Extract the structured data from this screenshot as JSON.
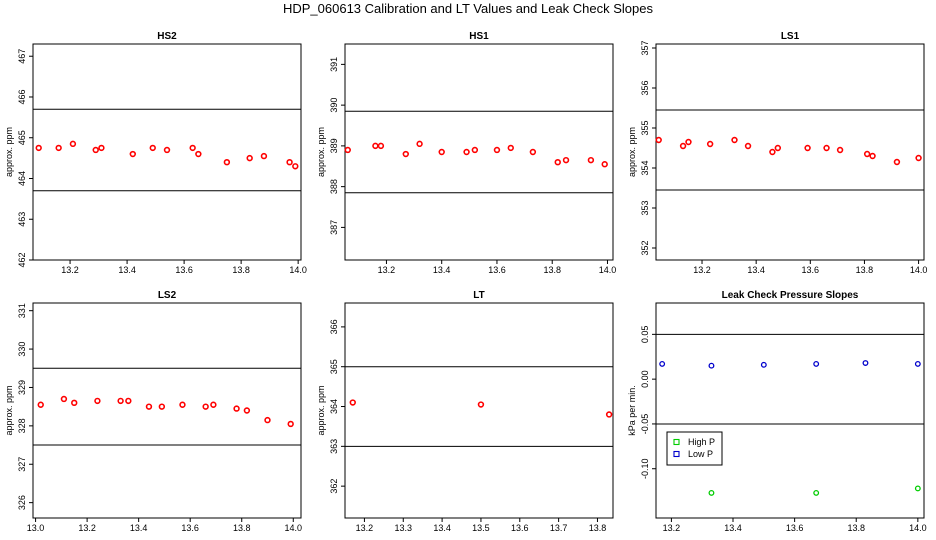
{
  "title": "HDP_060613  Calibration and LT Values and Leak Check Slopes",
  "colors": {
    "points": "#ff0000",
    "point_edge": "#cc0000",
    "high_p": "#00cc00",
    "low_p": "#0000cc",
    "line": "#000000"
  },
  "chart_data": [
    {
      "id": "hs2",
      "type": "scatter",
      "title": "HS2",
      "ylabel": "approx. ppm",
      "xlim": [
        13.07,
        14.01
      ],
      "ylim": [
        462,
        467.3
      ],
      "xticks": [
        13.2,
        13.4,
        13.6,
        13.8,
        14.0
      ],
      "xtick_labels": [
        "13.2",
        "13.4",
        "13.6",
        "13.8",
        "14.0"
      ],
      "yticks": [
        462,
        463,
        464,
        465,
        466,
        467
      ],
      "ytick_labels": [
        "462",
        "463",
        "464",
        "465",
        "466",
        "467"
      ],
      "hlines": [
        465.7,
        463.7
      ],
      "x": [
        13.09,
        13.16,
        13.21,
        13.29,
        13.31,
        13.42,
        13.49,
        13.54,
        13.63,
        13.65,
        13.75,
        13.83,
        13.88,
        13.97,
        13.99
      ],
      "y": [
        464.75,
        464.75,
        464.85,
        464.7,
        464.75,
        464.6,
        464.75,
        464.7,
        464.75,
        464.6,
        464.4,
        464.5,
        464.55,
        464.4,
        464.3
      ]
    },
    {
      "id": "hs1",
      "type": "scatter",
      "title": "HS1",
      "ylabel": "approx. ppm",
      "xlim": [
        13.05,
        14.02
      ],
      "ylim": [
        386.2,
        391.5
      ],
      "xticks": [
        13.2,
        13.4,
        13.6,
        13.8,
        14.0
      ],
      "xtick_labels": [
        "13.2",
        "13.4",
        "13.6",
        "13.8",
        "14.0"
      ],
      "yticks": [
        387,
        388,
        389,
        390,
        391
      ],
      "ytick_labels": [
        "387",
        "388",
        "389",
        "390",
        "391"
      ],
      "hlines": [
        389.85,
        387.85
      ],
      "x": [
        13.06,
        13.16,
        13.18,
        13.27,
        13.32,
        13.4,
        13.49,
        13.52,
        13.6,
        13.65,
        13.73,
        13.82,
        13.85,
        13.94,
        13.99
      ],
      "y": [
        388.9,
        389.0,
        389.0,
        388.8,
        389.05,
        388.85,
        388.85,
        388.9,
        388.9,
        388.95,
        388.85,
        388.6,
        388.65,
        388.65,
        388.55
      ]
    },
    {
      "id": "ls1",
      "type": "scatter",
      "title": "LS1",
      "ylabel": "approx. ppm",
      "xlim": [
        13.03,
        14.02
      ],
      "ylim": [
        351.7,
        357.1
      ],
      "xticks": [
        13.2,
        13.4,
        13.6,
        13.8,
        14.0
      ],
      "xtick_labels": [
        "13.2",
        "13.4",
        "13.6",
        "13.8",
        "14.0"
      ],
      "yticks": [
        352,
        353,
        354,
        355,
        356,
        357
      ],
      "ytick_labels": [
        "352",
        "353",
        "354",
        "355",
        "356",
        "357"
      ],
      "hlines": [
        355.45,
        353.45
      ],
      "x": [
        13.04,
        13.13,
        13.15,
        13.23,
        13.32,
        13.37,
        13.46,
        13.48,
        13.59,
        13.66,
        13.71,
        13.81,
        13.83,
        13.92,
        14.0
      ],
      "y": [
        354.7,
        354.55,
        354.65,
        354.6,
        354.7,
        354.55,
        354.4,
        354.5,
        354.5,
        354.5,
        354.45,
        354.35,
        354.3,
        354.15,
        354.25
      ]
    },
    {
      "id": "ls2",
      "type": "scatter",
      "title": "LS2",
      "ylabel": "approx. ppm",
      "xlim": [
        12.99,
        14.03
      ],
      "ylim": [
        325.6,
        331.2
      ],
      "xticks": [
        13.0,
        13.2,
        13.4,
        13.6,
        13.8,
        14.0
      ],
      "xtick_labels": [
        "13.0",
        "13.2",
        "13.4",
        "13.6",
        "13.8",
        "14.0"
      ],
      "yticks": [
        326,
        327,
        328,
        329,
        330,
        331
      ],
      "ytick_labels": [
        "326",
        "327",
        "328",
        "329",
        "330",
        "331"
      ],
      "hlines": [
        329.5,
        327.5
      ],
      "x": [
        13.02,
        13.11,
        13.15,
        13.24,
        13.33,
        13.36,
        13.44,
        13.49,
        13.57,
        13.66,
        13.69,
        13.78,
        13.82,
        13.9,
        13.99
      ],
      "y": [
        328.55,
        328.7,
        328.6,
        328.65,
        328.65,
        328.65,
        328.5,
        328.5,
        328.55,
        328.5,
        328.55,
        328.45,
        328.4,
        328.15,
        328.05
      ]
    },
    {
      "id": "lt",
      "type": "scatter",
      "title": "LT",
      "ylabel": "approx. ppm",
      "xlim": [
        13.15,
        13.84
      ],
      "ylim": [
        361.2,
        366.6
      ],
      "xticks": [
        13.2,
        13.3,
        13.4,
        13.5,
        13.6,
        13.7,
        13.8
      ],
      "xtick_labels": [
        "13.2",
        "13.3",
        "13.4",
        "13.5",
        "13.6",
        "13.7",
        "13.8"
      ],
      "yticks": [
        362,
        363,
        364,
        365,
        366
      ],
      "ytick_labels": [
        "362",
        "363",
        "364",
        "365",
        "366"
      ],
      "hlines": [
        365.0,
        363.0
      ],
      "x": [
        13.17,
        13.5,
        13.83
      ],
      "y": [
        364.1,
        364.05,
        363.8
      ]
    },
    {
      "id": "leak",
      "type": "scatter",
      "title": "Leak Check Pressure Slopes",
      "ylabel": "kPa per min.",
      "xlim": [
        13.15,
        14.02
      ],
      "ylim": [
        -0.155,
        0.085
      ],
      "xticks": [
        13.2,
        13.4,
        13.6,
        13.8,
        14.0
      ],
      "xtick_labels": [
        "13.2",
        "13.4",
        "13.6",
        "13.8",
        "14.0"
      ],
      "yticks": [
        0.05,
        0.0,
        -0.05,
        -0.1
      ],
      "ytick_labels": [
        "0.05",
        "0.00",
        "-0.05",
        "-0.10"
      ],
      "hlines": [
        0.05,
        -0.05
      ],
      "series": [
        {
          "name": "High P",
          "color": "#00cc00",
          "x": [
            13.33,
            13.67,
            14.0
          ],
          "y": [
            -0.127,
            -0.127,
            -0.122
          ]
        },
        {
          "name": "Low P",
          "color": "#0000cc",
          "x": [
            13.17,
            13.33,
            13.5,
            13.67,
            13.83,
            14.0
          ],
          "y": [
            0.017,
            0.015,
            0.016,
            0.017,
            0.018,
            0.017
          ]
        }
      ],
      "legend": {
        "position": "bottom-left",
        "entries": [
          "High P",
          "Low P"
        ]
      }
    }
  ]
}
